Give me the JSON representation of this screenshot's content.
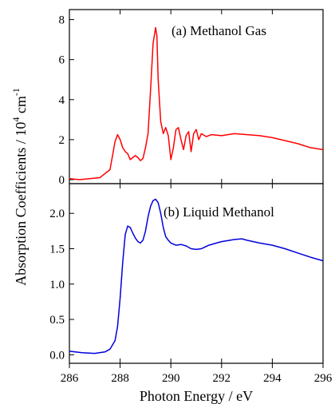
{
  "chart_data": [
    {
      "type": "line",
      "panel_label": "(a) Methanol Gas",
      "series": [
        {
          "color": "#ff0000",
          "x": [
            286.0,
            286.4,
            286.8,
            287.2,
            287.4,
            287.6,
            287.7,
            287.8,
            287.9,
            288.0,
            288.1,
            288.2,
            288.3,
            288.4,
            288.5,
            288.6,
            288.7,
            288.8,
            288.9,
            289.0,
            289.1,
            289.2,
            289.3,
            289.4,
            289.45,
            289.5,
            289.6,
            289.7,
            289.8,
            289.9,
            290.0,
            290.1,
            290.2,
            290.3,
            290.4,
            290.5,
            290.6,
            290.7,
            290.8,
            290.9,
            291.0,
            291.1,
            291.2,
            291.4,
            291.6,
            292.0,
            292.5,
            293.0,
            293.5,
            294.0,
            294.5,
            295.0,
            295.5,
            296.0
          ],
          "y": [
            0.05,
            0.0,
            0.05,
            0.1,
            0.3,
            0.5,
            1.2,
            1.9,
            2.25,
            2.0,
            1.6,
            1.4,
            1.3,
            1.0,
            1.1,
            1.2,
            1.1,
            0.95,
            1.05,
            1.6,
            2.3,
            4.5,
            6.8,
            7.6,
            7.2,
            5.0,
            2.9,
            2.3,
            2.6,
            2.2,
            1.0,
            1.6,
            2.5,
            2.6,
            2.0,
            1.5,
            2.2,
            2.4,
            1.4,
            2.3,
            2.5,
            2.0,
            2.3,
            2.15,
            2.25,
            2.2,
            2.3,
            2.25,
            2.2,
            2.1,
            1.95,
            1.8,
            1.6,
            1.5
          ]
        }
      ],
      "xlim": [
        286,
        296
      ],
      "ylim": [
        -0.2,
        8.5
      ],
      "yticks": [
        "0",
        "2",
        "4",
        "6",
        "8"
      ],
      "grid": false
    },
    {
      "type": "line",
      "panel_label": "(b) Liquid Methanol",
      "series": [
        {
          "color": "#0000dd",
          "x": [
            286.0,
            286.5,
            287.0,
            287.4,
            287.6,
            287.8,
            287.9,
            288.0,
            288.1,
            288.2,
            288.3,
            288.4,
            288.5,
            288.6,
            288.7,
            288.8,
            288.9,
            289.0,
            289.1,
            289.2,
            289.3,
            289.4,
            289.5,
            289.6,
            289.7,
            289.8,
            289.9,
            290.0,
            290.2,
            290.4,
            290.6,
            290.8,
            291.0,
            291.2,
            291.5,
            291.8,
            292.0,
            292.5,
            292.8,
            293.0,
            293.5,
            294.0,
            294.5,
            295.0,
            295.5,
            296.0
          ],
          "y": [
            0.05,
            0.03,
            0.02,
            0.04,
            0.08,
            0.2,
            0.4,
            0.8,
            1.3,
            1.7,
            1.82,
            1.8,
            1.72,
            1.65,
            1.6,
            1.58,
            1.62,
            1.75,
            1.95,
            2.1,
            2.18,
            2.2,
            2.15,
            2.0,
            1.8,
            1.67,
            1.62,
            1.58,
            1.55,
            1.56,
            1.54,
            1.5,
            1.49,
            1.5,
            1.55,
            1.58,
            1.6,
            1.63,
            1.64,
            1.62,
            1.58,
            1.55,
            1.5,
            1.44,
            1.38,
            1.33
          ]
        }
      ],
      "xlim": [
        286,
        296
      ],
      "ylim": [
        -0.12,
        2.42
      ],
      "yticks": [
        "0.0",
        "0.5",
        "1.0",
        "1.5",
        "2.0"
      ],
      "grid": false
    }
  ],
  "xticks": [
    "286",
    "288",
    "290",
    "292",
    "294",
    "296"
  ],
  "xlabel": "Photon Energy / eV",
  "ylabel": {
    "prefix": "Absorption Coefficients / 10",
    "exp1": "4",
    "mid": " cm",
    "exp2": "-1"
  }
}
